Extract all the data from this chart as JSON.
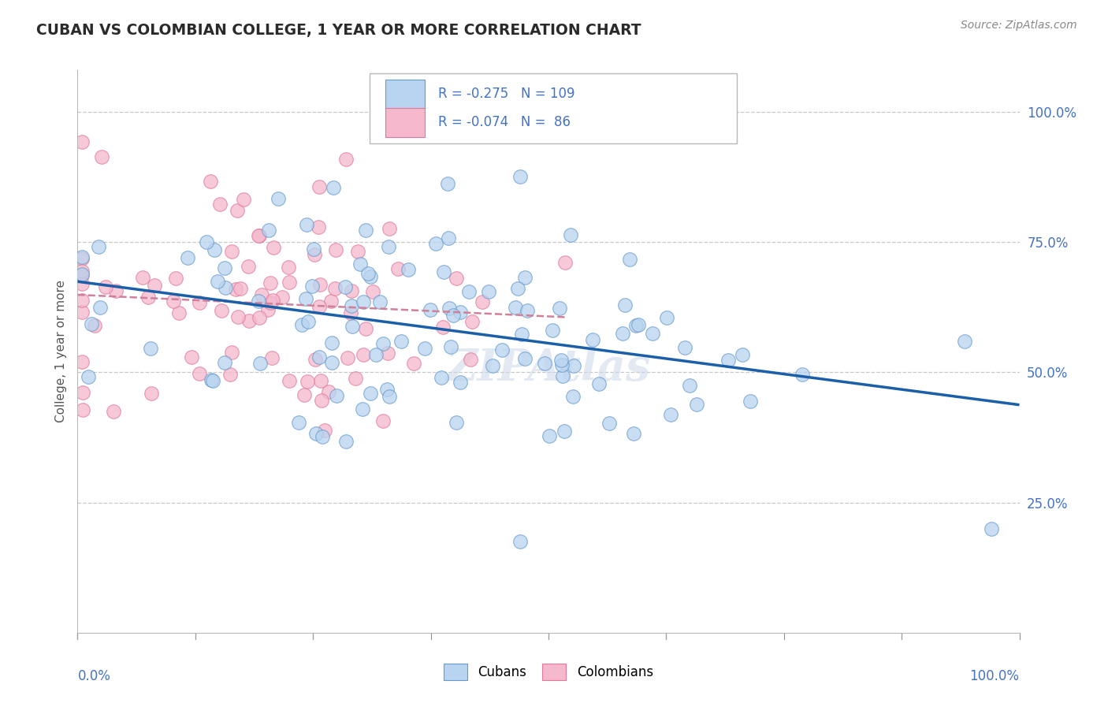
{
  "title": "CUBAN VS COLOMBIAN COLLEGE, 1 YEAR OR MORE CORRELATION CHART",
  "source": "Source: ZipAtlas.com",
  "ylabel": "College, 1 year or more",
  "ytick_labels": [
    "100.0%",
    "75.0%",
    "50.0%",
    "25.0%"
  ],
  "ytick_values": [
    1.0,
    0.75,
    0.5,
    0.25
  ],
  "R_cuban": -0.275,
  "N_cuban": 109,
  "R_colombian": -0.074,
  "N_colombian": 86,
  "cuban_face": "#b8d4f0",
  "cuban_edge": "#6699cc",
  "colombian_face": "#f5b8cc",
  "colombian_edge": "#e07898",
  "cuban_line_color": "#1a5fa8",
  "colombian_line_color": "#d08098",
  "title_color": "#2a2a2a",
  "source_color": "#888888",
  "axis_label_color": "#4472c4",
  "grid_color": "#c8c8c8",
  "background_color": "#ffffff",
  "xmin": 0.0,
  "xmax": 1.0,
  "ymin": 0.0,
  "ymax": 1.08,
  "legend_R1": "R = -0.275",
  "legend_N1": "N = 109",
  "legend_R2": "R = -0.074",
  "legend_N2": "N =  86"
}
